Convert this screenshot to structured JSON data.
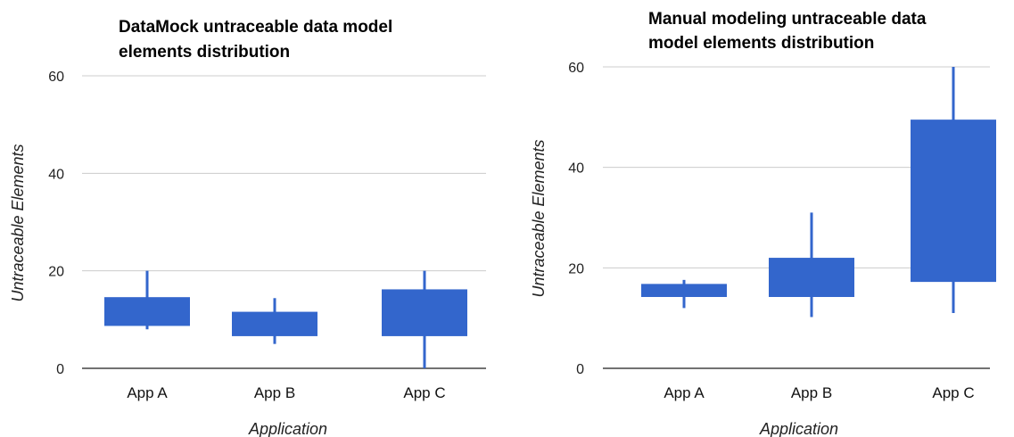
{
  "chart_data": [
    {
      "type": "candlestick",
      "title_lines": [
        "DataMock untraceable data model",
        "elements distribution"
      ],
      "xlabel": "Application",
      "ylabel": "Untraceable Elements",
      "ylim": [
        0,
        60
      ],
      "yticks": [
        0,
        20,
        40,
        60
      ],
      "grid": true,
      "color": "#3366cc",
      "categories": [
        "App A",
        "App B",
        "App C"
      ],
      "boxes": [
        {
          "low": 8,
          "q1": 8.7,
          "q3": 14.6,
          "high": 20
        },
        {
          "low": 5,
          "q1": 6.6,
          "q3": 11.6,
          "high": 14.4
        },
        {
          "low": 0,
          "q1": 6.6,
          "q3": 16.2,
          "high": 20
        }
      ]
    },
    {
      "type": "candlestick",
      "title_lines": [
        "Manual modeling untraceable data",
        "model elements distribution"
      ],
      "xlabel": "Application",
      "ylabel": "Untraceable Elements",
      "ylim": [
        0,
        60
      ],
      "yticks": [
        0,
        20,
        40,
        60
      ],
      "grid": true,
      "color": "#3366cc",
      "categories": [
        "App A",
        "App B",
        "App C"
      ],
      "boxes": [
        {
          "low": 12,
          "q1": 14.2,
          "q3": 16.8,
          "high": 17.6
        },
        {
          "low": 10.2,
          "q1": 14.2,
          "q3": 22,
          "high": 31
        },
        {
          "low": 11,
          "q1": 17.2,
          "q3": 49.5,
          "high": 60
        }
      ]
    }
  ]
}
